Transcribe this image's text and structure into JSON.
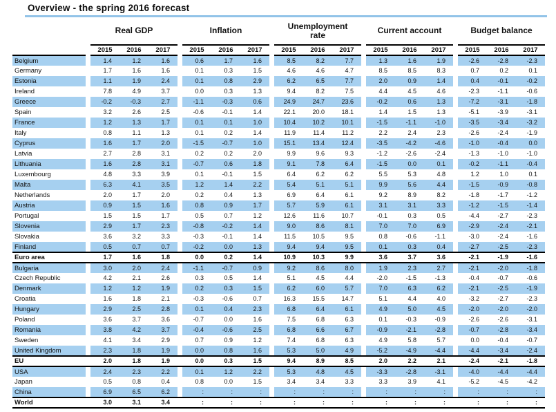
{
  "title": "Overview - the spring 2016 forecast",
  "colors": {
    "stripe_blue": "#a6d0f0",
    "title_rule_blue": "#92c3e8",
    "bottom_rule_blue": "#bdd9f0",
    "header_rule_black": "#000000"
  },
  "table": {
    "group_keys": [
      "gdp",
      "inflation",
      "unemployment",
      "current_account",
      "budget_balance"
    ],
    "groups": [
      {
        "label": "Real GDP"
      },
      {
        "label": "Inflation"
      },
      {
        "label": "Unemployment\nrate"
      },
      {
        "label": "Current account"
      },
      {
        "label": "Budget balance"
      }
    ],
    "years": [
      "2015",
      "2016",
      "2017"
    ],
    "missing_symbol": ":",
    "rows": [
      {
        "name": "Belgium",
        "shaded": true,
        "bold": false,
        "gdp": [
          "1.4",
          "1.2",
          "1.6"
        ],
        "inflation": [
          "0.6",
          "1.7",
          "1.6"
        ],
        "unemployment": [
          "8.5",
          "8.2",
          "7.7"
        ],
        "current_account": [
          "1.3",
          "1.6",
          "1.9"
        ],
        "budget_balance": [
          "-2.6",
          "-2.8",
          "-2.3"
        ]
      },
      {
        "name": "Germany",
        "shaded": false,
        "bold": false,
        "gdp": [
          "1.7",
          "1.6",
          "1.6"
        ],
        "inflation": [
          "0.1",
          "0.3",
          "1.5"
        ],
        "unemployment": [
          "4.6",
          "4.6",
          "4.7"
        ],
        "current_account": [
          "8.5",
          "8.5",
          "8.3"
        ],
        "budget_balance": [
          "0.7",
          "0.2",
          "0.1"
        ]
      },
      {
        "name": "Estonia",
        "shaded": true,
        "bold": false,
        "gdp": [
          "1.1",
          "1.9",
          "2.4"
        ],
        "inflation": [
          "0.1",
          "0.8",
          "2.9"
        ],
        "unemployment": [
          "6.2",
          "6.5",
          "7.7"
        ],
        "current_account": [
          "2.0",
          "0.9",
          "1.4"
        ],
        "budget_balance": [
          "0.4",
          "-0.1",
          "-0.2"
        ]
      },
      {
        "name": "Ireland",
        "shaded": false,
        "bold": false,
        "gdp": [
          "7.8",
          "4.9",
          "3.7"
        ],
        "inflation": [
          "0.0",
          "0.3",
          "1.3"
        ],
        "unemployment": [
          "9.4",
          "8.2",
          "7.5"
        ],
        "current_account": [
          "4.4",
          "4.5",
          "4.6"
        ],
        "budget_balance": [
          "-2.3",
          "-1.1",
          "-0.6"
        ]
      },
      {
        "name": "Greece",
        "shaded": true,
        "bold": false,
        "gdp": [
          "-0.2",
          "-0.3",
          "2.7"
        ],
        "inflation": [
          "-1.1",
          "-0.3",
          "0.6"
        ],
        "unemployment": [
          "24.9",
          "24.7",
          "23.6"
        ],
        "current_account": [
          "-0.2",
          "0.6",
          "1.3"
        ],
        "budget_balance": [
          "-7.2",
          "-3.1",
          "-1.8"
        ]
      },
      {
        "name": "Spain",
        "shaded": false,
        "bold": false,
        "gdp": [
          "3.2",
          "2.6",
          "2.5"
        ],
        "inflation": [
          "-0.6",
          "-0.1",
          "1.4"
        ],
        "unemployment": [
          "22.1",
          "20.0",
          "18.1"
        ],
        "current_account": [
          "1.4",
          "1.5",
          "1.3"
        ],
        "budget_balance": [
          "-5.1",
          "-3.9",
          "-3.1"
        ]
      },
      {
        "name": "France",
        "shaded": true,
        "bold": false,
        "gdp": [
          "1.2",
          "1.3",
          "1.7"
        ],
        "inflation": [
          "0.1",
          "0.1",
          "1.0"
        ],
        "unemployment": [
          "10.4",
          "10.2",
          "10.1"
        ],
        "current_account": [
          "-1.5",
          "-1.1",
          "-1.0"
        ],
        "budget_balance": [
          "-3.5",
          "-3.4",
          "-3.2"
        ]
      },
      {
        "name": "Italy",
        "shaded": false,
        "bold": false,
        "gdp": [
          "0.8",
          "1.1",
          "1.3"
        ],
        "inflation": [
          "0.1",
          "0.2",
          "1.4"
        ],
        "unemployment": [
          "11.9",
          "11.4",
          "11.2"
        ],
        "current_account": [
          "2.2",
          "2.4",
          "2.3"
        ],
        "budget_balance": [
          "-2.6",
          "-2.4",
          "-1.9"
        ]
      },
      {
        "name": "Cyprus",
        "shaded": true,
        "bold": false,
        "gdp": [
          "1.6",
          "1.7",
          "2.0"
        ],
        "inflation": [
          "-1.5",
          "-0.7",
          "1.0"
        ],
        "unemployment": [
          "15.1",
          "13.4",
          "12.4"
        ],
        "current_account": [
          "-3.5",
          "-4.2",
          "-4.6"
        ],
        "budget_balance": [
          "-1.0",
          "-0.4",
          "0.0"
        ]
      },
      {
        "name": "Latvia",
        "shaded": false,
        "bold": false,
        "gdp": [
          "2.7",
          "2.8",
          "3.1"
        ],
        "inflation": [
          "0.2",
          "0.2",
          "2.0"
        ],
        "unemployment": [
          "9.9",
          "9.6",
          "9.3"
        ],
        "current_account": [
          "-1.2",
          "-2.6",
          "-2.4"
        ],
        "budget_balance": [
          "-1.3",
          "-1.0",
          "-1.0"
        ]
      },
      {
        "name": "Lithuania",
        "shaded": true,
        "bold": false,
        "gdp": [
          "1.6",
          "2.8",
          "3.1"
        ],
        "inflation": [
          "-0.7",
          "0.6",
          "1.8"
        ],
        "unemployment": [
          "9.1",
          "7.8",
          "6.4"
        ],
        "current_account": [
          "-1.5",
          "0.0",
          "0.1"
        ],
        "budget_balance": [
          "-0.2",
          "-1.1",
          "-0.4"
        ]
      },
      {
        "name": "Luxembourg",
        "shaded": false,
        "bold": false,
        "gdp": [
          "4.8",
          "3.3",
          "3.9"
        ],
        "inflation": [
          "0.1",
          "-0.1",
          "1.5"
        ],
        "unemployment": [
          "6.4",
          "6.2",
          "6.2"
        ],
        "current_account": [
          "5.5",
          "5.3",
          "4.8"
        ],
        "budget_balance": [
          "1.2",
          "1.0",
          "0.1"
        ]
      },
      {
        "name": "Malta",
        "shaded": true,
        "bold": false,
        "gdp": [
          "6.3",
          "4.1",
          "3.5"
        ],
        "inflation": [
          "1.2",
          "1.4",
          "2.2"
        ],
        "unemployment": [
          "5.4",
          "5.1",
          "5.1"
        ],
        "current_account": [
          "9.9",
          "5.6",
          "4.4"
        ],
        "budget_balance": [
          "-1.5",
          "-0.9",
          "-0.8"
        ]
      },
      {
        "name": "Netherlands",
        "shaded": false,
        "bold": false,
        "gdp": [
          "2.0",
          "1.7",
          "2.0"
        ],
        "inflation": [
          "0.2",
          "0.4",
          "1.3"
        ],
        "unemployment": [
          "6.9",
          "6.4",
          "6.1"
        ],
        "current_account": [
          "9.2",
          "8.9",
          "8.2"
        ],
        "budget_balance": [
          "-1.8",
          "-1.7",
          "-1.2"
        ]
      },
      {
        "name": "Austria",
        "shaded": true,
        "bold": false,
        "gdp": [
          "0.9",
          "1.5",
          "1.6"
        ],
        "inflation": [
          "0.8",
          "0.9",
          "1.7"
        ],
        "unemployment": [
          "5.7",
          "5.9",
          "6.1"
        ],
        "current_account": [
          "3.1",
          "3.1",
          "3.3"
        ],
        "budget_balance": [
          "-1.2",
          "-1.5",
          "-1.4"
        ]
      },
      {
        "name": "Portugal",
        "shaded": false,
        "bold": false,
        "gdp": [
          "1.5",
          "1.5",
          "1.7"
        ],
        "inflation": [
          "0.5",
          "0.7",
          "1.2"
        ],
        "unemployment": [
          "12.6",
          "11.6",
          "10.7"
        ],
        "current_account": [
          "-0.1",
          "0.3",
          "0.5"
        ],
        "budget_balance": [
          "-4.4",
          "-2.7",
          "-2.3"
        ]
      },
      {
        "name": "Slovenia",
        "shaded": true,
        "bold": false,
        "gdp": [
          "2.9",
          "1.7",
          "2.3"
        ],
        "inflation": [
          "-0.8",
          "-0.2",
          "1.4"
        ],
        "unemployment": [
          "9.0",
          "8.6",
          "8.1"
        ],
        "current_account": [
          "7.0",
          "7.0",
          "6.9"
        ],
        "budget_balance": [
          "-2.9",
          "-2.4",
          "-2.1"
        ]
      },
      {
        "name": "Slovakia",
        "shaded": false,
        "bold": false,
        "gdp": [
          "3.6",
          "3.2",
          "3.3"
        ],
        "inflation": [
          "-0.3",
          "-0.1",
          "1.4"
        ],
        "unemployment": [
          "11.5",
          "10.5",
          "9.5"
        ],
        "current_account": [
          "0.8",
          "-0.6",
          "-1.1"
        ],
        "budget_balance": [
          "-3.0",
          "-2.4",
          "-1.6"
        ]
      },
      {
        "name": "Finland",
        "shaded": true,
        "bold": false,
        "gdp": [
          "0.5",
          "0.7",
          "0.7"
        ],
        "inflation": [
          "-0.2",
          "0.0",
          "1.3"
        ],
        "unemployment": [
          "9.4",
          "9.4",
          "9.5"
        ],
        "current_account": [
          "0.1",
          "0.3",
          "0.4"
        ],
        "budget_balance": [
          "-2.7",
          "-2.5",
          "-2.3"
        ]
      },
      {
        "name": "Euro area",
        "shaded": false,
        "bold": true,
        "gdp": [
          "1.7",
          "1.6",
          "1.8"
        ],
        "inflation": [
          "0.0",
          "0.2",
          "1.4"
        ],
        "unemployment": [
          "10.9",
          "10.3",
          "9.9"
        ],
        "current_account": [
          "3.6",
          "3.7",
          "3.6"
        ],
        "budget_balance": [
          "-2.1",
          "-1.9",
          "-1.6"
        ]
      },
      {
        "name": "Bulgaria",
        "shaded": true,
        "bold": false,
        "gdp": [
          "3.0",
          "2.0",
          "2.4"
        ],
        "inflation": [
          "-1.1",
          "-0.7",
          "0.9"
        ],
        "unemployment": [
          "9.2",
          "8.6",
          "8.0"
        ],
        "current_account": [
          "1.9",
          "2.3",
          "2.7"
        ],
        "budget_balance": [
          "-2.1",
          "-2.0",
          "-1.8"
        ]
      },
      {
        "name": "Czech Republic",
        "shaded": false,
        "bold": false,
        "gdp": [
          "4.2",
          "2.1",
          "2.6"
        ],
        "inflation": [
          "0.3",
          "0.5",
          "1.4"
        ],
        "unemployment": [
          "5.1",
          "4.5",
          "4.4"
        ],
        "current_account": [
          "-2.0",
          "-1.5",
          "-1.3"
        ],
        "budget_balance": [
          "-0.4",
          "-0.7",
          "-0.6"
        ]
      },
      {
        "name": "Denmark",
        "shaded": true,
        "bold": false,
        "gdp": [
          "1.2",
          "1.2",
          "1.9"
        ],
        "inflation": [
          "0.2",
          "0.3",
          "1.5"
        ],
        "unemployment": [
          "6.2",
          "6.0",
          "5.7"
        ],
        "current_account": [
          "7.0",
          "6.3",
          "6.2"
        ],
        "budget_balance": [
          "-2.1",
          "-2.5",
          "-1.9"
        ]
      },
      {
        "name": "Croatia",
        "shaded": false,
        "bold": false,
        "gdp": [
          "1.6",
          "1.8",
          "2.1"
        ],
        "inflation": [
          "-0.3",
          "-0.6",
          "0.7"
        ],
        "unemployment": [
          "16.3",
          "15.5",
          "14.7"
        ],
        "current_account": [
          "5.1",
          "4.4",
          "4.0"
        ],
        "budget_balance": [
          "-3.2",
          "-2.7",
          "-2.3"
        ]
      },
      {
        "name": "Hungary",
        "shaded": true,
        "bold": false,
        "gdp": [
          "2.9",
          "2.5",
          "2.8"
        ],
        "inflation": [
          "0.1",
          "0.4",
          "2.3"
        ],
        "unemployment": [
          "6.8",
          "6.4",
          "6.1"
        ],
        "current_account": [
          "4.9",
          "5.0",
          "4.5"
        ],
        "budget_balance": [
          "-2.0",
          "-2.0",
          "-2.0"
        ]
      },
      {
        "name": "Poland",
        "shaded": false,
        "bold": false,
        "gdp": [
          "3.6",
          "3.7",
          "3.6"
        ],
        "inflation": [
          "-0.7",
          "0.0",
          "1.6"
        ],
        "unemployment": [
          "7.5",
          "6.8",
          "6.3"
        ],
        "current_account": [
          "0.1",
          "-0.3",
          "-0.9"
        ],
        "budget_balance": [
          "-2.6",
          "-2.6",
          "-3.1"
        ]
      },
      {
        "name": "Romania",
        "shaded": true,
        "bold": false,
        "gdp": [
          "3.8",
          "4.2",
          "3.7"
        ],
        "inflation": [
          "-0.4",
          "-0.6",
          "2.5"
        ],
        "unemployment": [
          "6.8",
          "6.6",
          "6.7"
        ],
        "current_account": [
          "-0.9",
          "-2.1",
          "-2.8"
        ],
        "budget_balance": [
          "-0.7",
          "-2.8",
          "-3.4"
        ]
      },
      {
        "name": "Sweden",
        "shaded": false,
        "bold": false,
        "gdp": [
          "4.1",
          "3.4",
          "2.9"
        ],
        "inflation": [
          "0.7",
          "0.9",
          "1.2"
        ],
        "unemployment": [
          "7.4",
          "6.8",
          "6.3"
        ],
        "current_account": [
          "4.9",
          "5.8",
          "5.7"
        ],
        "budget_balance": [
          "0.0",
          "-0.4",
          "-0.7"
        ]
      },
      {
        "name": "United Kingdom",
        "shaded": true,
        "bold": false,
        "gdp": [
          "2.3",
          "1.8",
          "1.9"
        ],
        "inflation": [
          "0.0",
          "0.8",
          "1.6"
        ],
        "unemployment": [
          "5.3",
          "5.0",
          "4.9"
        ],
        "current_account": [
          "-5.2",
          "-4.9",
          "-4.4"
        ],
        "budget_balance": [
          "-4.4",
          "-3.4",
          "-2.4"
        ]
      },
      {
        "name": "EU",
        "shaded": false,
        "bold": true,
        "gdp": [
          "2.0",
          "1.8",
          "1.9"
        ],
        "inflation": [
          "0.0",
          "0.3",
          "1.5"
        ],
        "unemployment": [
          "9.4",
          "8.9",
          "8.5"
        ],
        "current_account": [
          "2.0",
          "2.2",
          "2.1"
        ],
        "budget_balance": [
          "-2.4",
          "-2.1",
          "-1.8"
        ]
      },
      {
        "name": "USA",
        "shaded": true,
        "bold": false,
        "gdp": [
          "2.4",
          "2.3",
          "2.2"
        ],
        "inflation": [
          "0.1",
          "1.2",
          "2.2"
        ],
        "unemployment": [
          "5.3",
          "4.8",
          "4.5"
        ],
        "current_account": [
          "-3.3",
          "-2.8",
          "-3.1"
        ],
        "budget_balance": [
          "-4.0",
          "-4.4",
          "-4.4"
        ]
      },
      {
        "name": "Japan",
        "shaded": false,
        "bold": false,
        "gdp": [
          "0.5",
          "0.8",
          "0.4"
        ],
        "inflation": [
          "0.8",
          "0.0",
          "1.5"
        ],
        "unemployment": [
          "3.4",
          "3.4",
          "3.3"
        ],
        "current_account": [
          "3.3",
          "3.9",
          "4.1"
        ],
        "budget_balance": [
          "-5.2",
          "-4.5",
          "-4.2"
        ]
      },
      {
        "name": "China",
        "shaded": true,
        "bold": false,
        "gdp": [
          "6.9",
          "6.5",
          "6.2"
        ],
        "inflation": [
          ":",
          ":",
          ":"
        ],
        "unemployment": [
          ":",
          ":",
          ":"
        ],
        "current_account": [
          ":",
          ":",
          ":"
        ],
        "budget_balance": [
          ":",
          ":",
          ":"
        ]
      },
      {
        "name": "World",
        "shaded": false,
        "bold": true,
        "gdp": [
          "3.0",
          "3.1",
          "3.4"
        ],
        "inflation": [
          ":",
          ":",
          ":"
        ],
        "unemployment": [
          ":",
          ":",
          ":"
        ],
        "current_account": [
          ":",
          ":",
          ":"
        ],
        "budget_balance": [
          ":",
          ":",
          ":"
        ]
      }
    ]
  }
}
